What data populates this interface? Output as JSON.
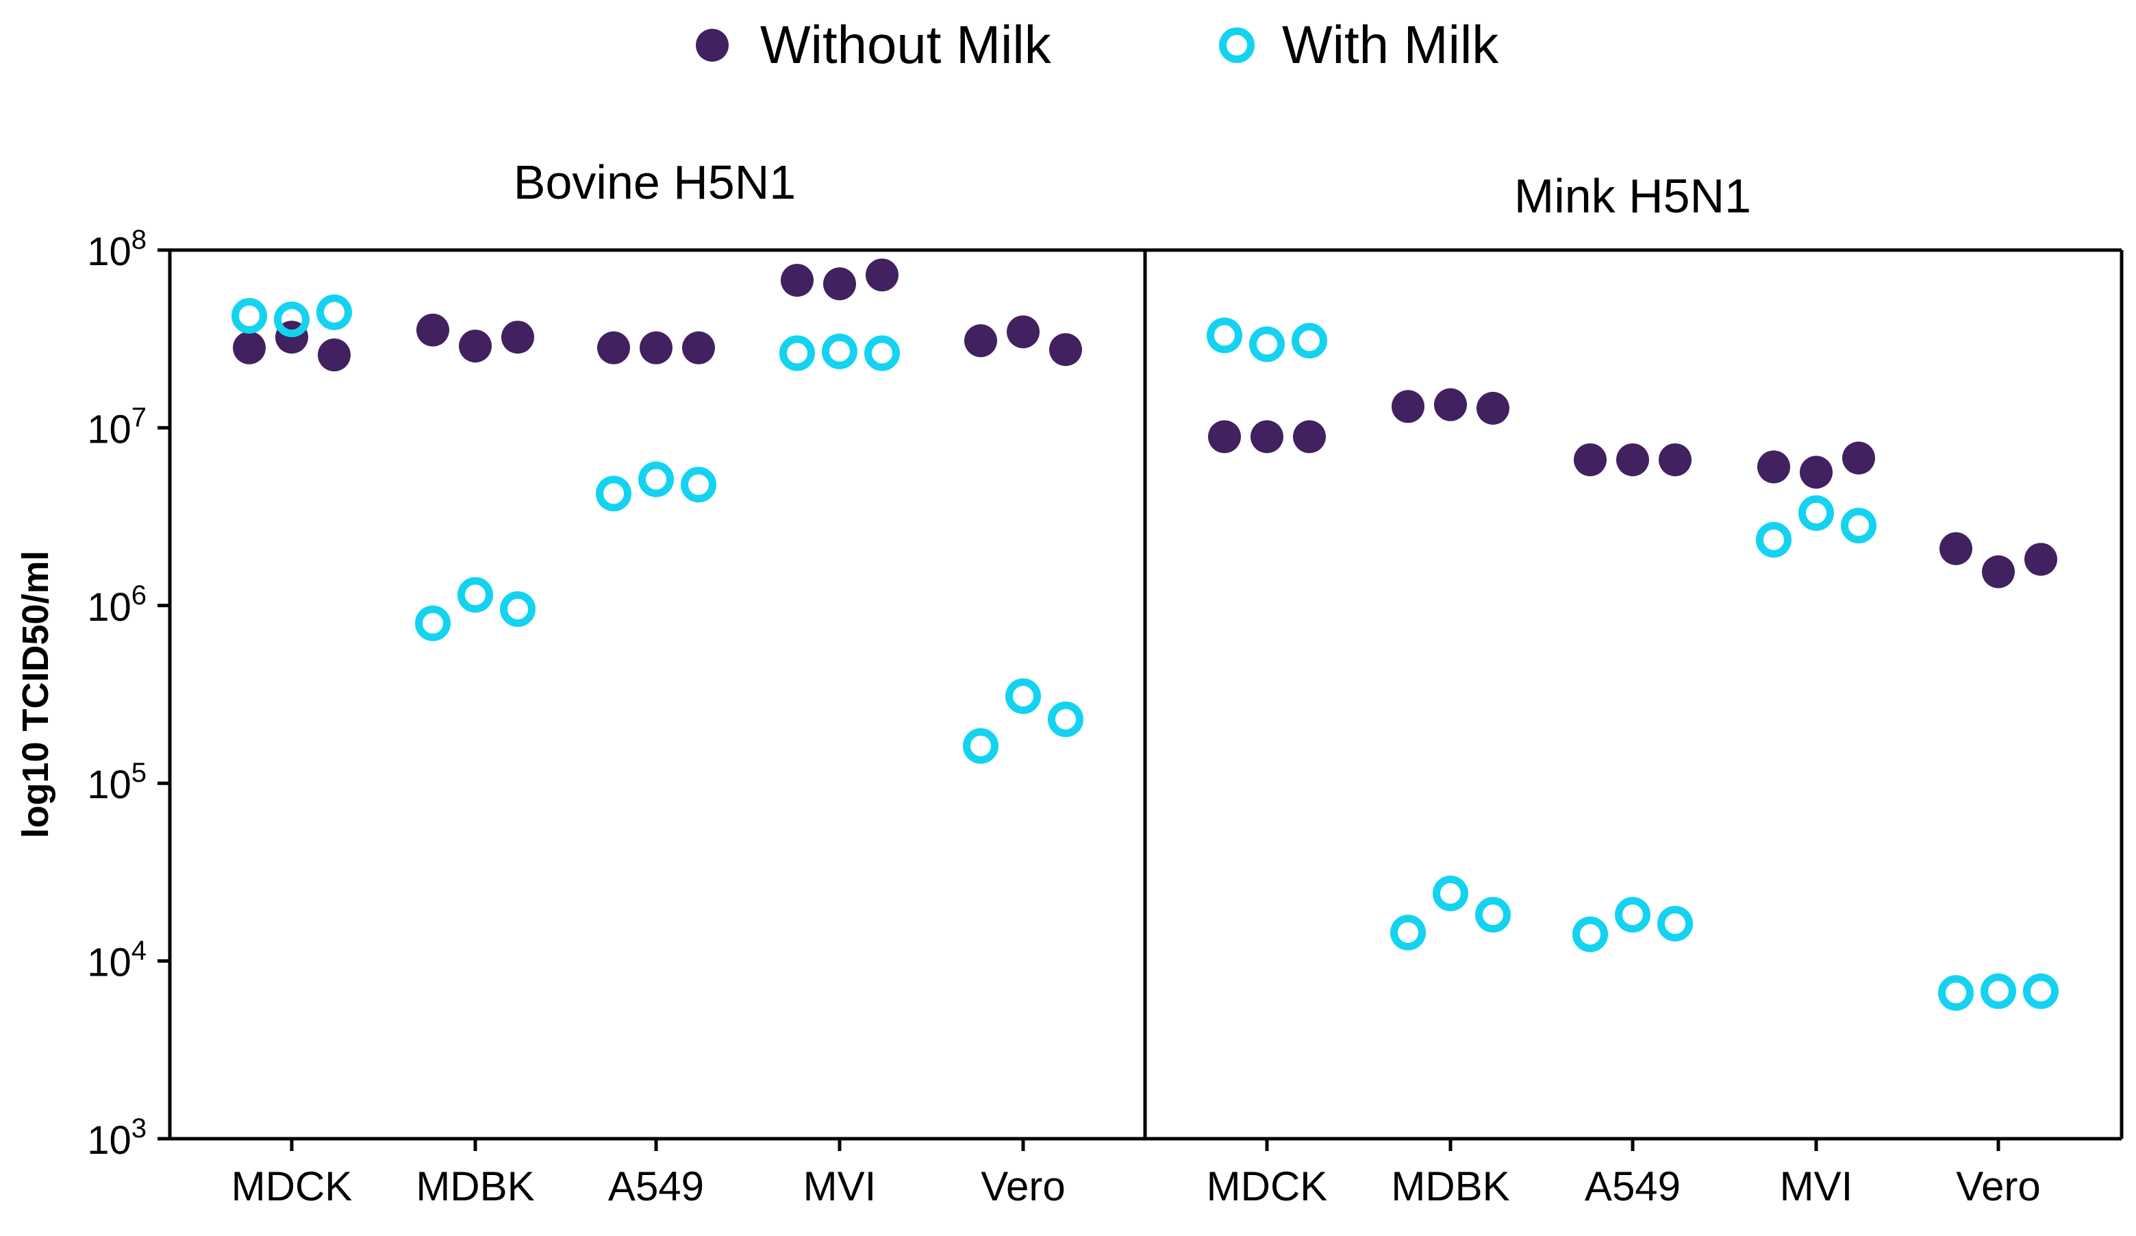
{
  "chart_data": {
    "type": "scatter",
    "scale": "log10",
    "legend_position": "top-center",
    "colors": {
      "without_milk": "#41215f",
      "with_milk": "#13d3f0",
      "axis": "#000000"
    },
    "legend": [
      {
        "key": "without_milk",
        "label": "Without Milk",
        "marker": "filled-circle"
      },
      {
        "key": "with_milk",
        "label": "With Milk",
        "marker": "open-circle"
      }
    ],
    "ylabel": "log10 TCID50/ml",
    "ylim_exponent": [
      3,
      8
    ],
    "y_ticks": [
      {
        "exp": 8,
        "base": "10",
        "sup": "8"
      },
      {
        "exp": 7,
        "base": "10",
        "sup": "7"
      },
      {
        "exp": 6,
        "base": "10",
        "sup": "6"
      },
      {
        "exp": 5,
        "base": "10",
        "sup": "5"
      },
      {
        "exp": 4,
        "base": "10",
        "sup": "4"
      },
      {
        "exp": 3,
        "base": "10",
        "sup": "3"
      }
    ],
    "categories": [
      "MDCK",
      "MDBK",
      "A549",
      "MVI",
      "Vero"
    ],
    "panels": [
      {
        "title": "Bovine H5N1",
        "series": [
          {
            "name": "Without Milk",
            "key": "without_milk",
            "values_log10": [
              [
                7.45,
                7.51,
                7.41
              ],
              [
                7.55,
                7.46,
                7.51
              ],
              [
                7.45,
                7.45,
                7.45
              ],
              [
                7.83,
                7.81,
                7.86
              ],
              [
                7.49,
                7.54,
                7.44
              ]
            ]
          },
          {
            "name": "With Milk",
            "key": "with_milk",
            "values_log10": [
              [
                7.63,
                7.61,
                7.65
              ],
              [
                5.9,
                6.06,
                5.98
              ],
              [
                6.63,
                6.71,
                6.68
              ],
              [
                7.42,
                7.43,
                7.42
              ],
              [
                5.21,
                5.49,
                5.36
              ]
            ]
          }
        ]
      },
      {
        "title": "Mink H5N1",
        "series": [
          {
            "name": "Without Milk",
            "key": "without_milk",
            "values_log10": [
              [
                6.95,
                6.95,
                6.95
              ],
              [
                7.12,
                7.13,
                7.11
              ],
              [
                6.82,
                6.82,
                6.82
              ],
              [
                6.78,
                6.75,
                6.83
              ],
              [
                6.32,
                6.19,
                6.26
              ]
            ]
          },
          {
            "name": "With Milk",
            "key": "with_milk",
            "values_log10": [
              [
                7.52,
                7.47,
                7.49
              ],
              [
                4.16,
                4.38,
                4.26
              ],
              [
                4.15,
                4.26,
                4.21
              ],
              [
                6.37,
                6.52,
                6.45
              ],
              [
                3.82,
                3.83,
                3.83
              ]
            ]
          }
        ]
      }
    ]
  }
}
